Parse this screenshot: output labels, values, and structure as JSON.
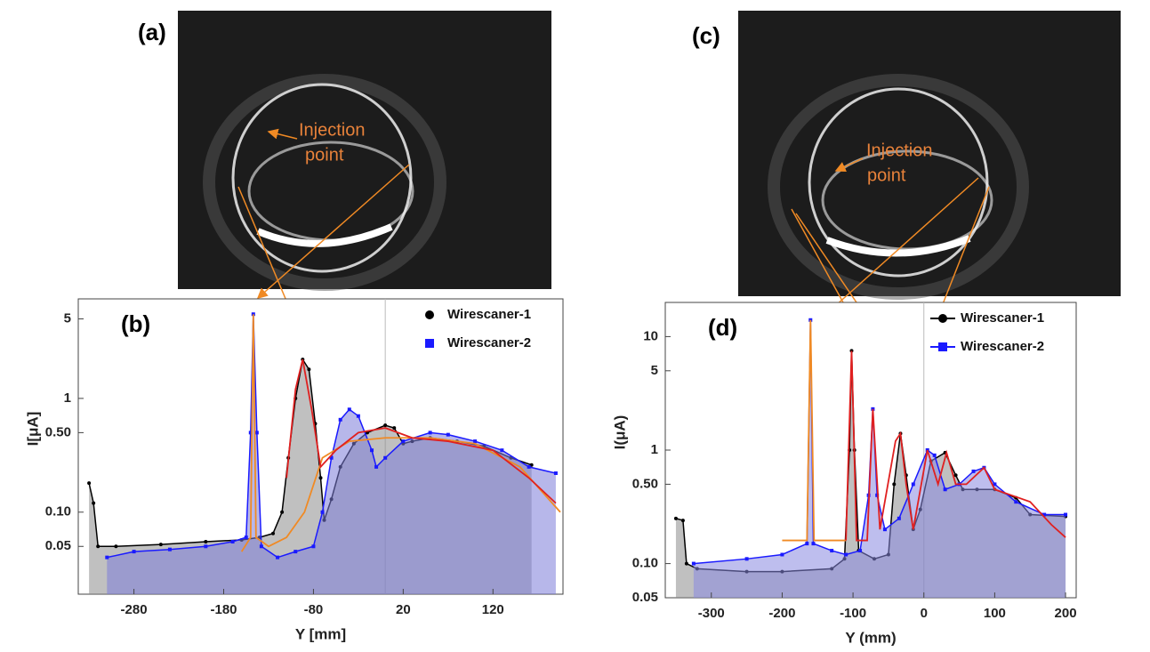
{
  "panels": [
    {
      "label": "(a)",
      "annotation": [
        "Injection",
        "point"
      ]
    },
    {
      "label": "(c)",
      "annotation": [
        "Injection",
        "point"
      ]
    }
  ],
  "chart_data": [
    {
      "type": "line",
      "label": "(b)",
      "x_label": "Y [mm]",
      "y_label": "I[μA]",
      "log_y": true,
      "legend": "upper right",
      "xlim": [
        -342,
        198
      ],
      "xticks": [
        -280,
        -180,
        -80,
        20,
        120
      ],
      "ylim": [
        0.019,
        7.5
      ],
      "yticks": [
        0.05,
        {
          "value": 0.1,
          "label": "0.10"
        },
        {
          "value": 0.5,
          "label": "0.50"
        },
        1,
        5
      ],
      "series": [
        {
          "name": "Wirescaner-1",
          "color": "#000000",
          "fill": "#8c8c8c",
          "marker": "circle",
          "x": [
            -330,
            -325,
            -320,
            -300,
            -250,
            -200,
            -160,
            -140,
            -125,
            -115,
            -108,
            -100,
            -92,
            -85,
            -78,
            -72,
            -68,
            -60,
            -50,
            -35,
            -20,
            0,
            10,
            20,
            30,
            50,
            80,
            110,
            140,
            163
          ],
          "values": [
            0.18,
            0.12,
            0.05,
            0.05,
            0.052,
            0.055,
            0.057,
            0.06,
            0.065,
            0.1,
            0.3,
            1.0,
            2.2,
            1.8,
            0.6,
            0.2,
            0.085,
            0.13,
            0.25,
            0.4,
            0.5,
            0.58,
            0.55,
            0.4,
            0.42,
            0.45,
            0.42,
            0.38,
            0.3,
            0.26
          ]
        },
        {
          "name": "Wirescaner-2",
          "color": "#1a1aff",
          "fill": "#7c7cd8",
          "marker": "square",
          "x": [
            -310,
            -280,
            -240,
            -200,
            -170,
            -155,
            -150,
            -147,
            -143,
            -138,
            -120,
            -100,
            -80,
            -70,
            -60,
            -50,
            -40,
            -30,
            -15,
            -10,
            0,
            20,
            50,
            70,
            100,
            130,
            160,
            190
          ],
          "values": [
            0.04,
            0.045,
            0.047,
            0.05,
            0.055,
            0.06,
            0.5,
            5.5,
            0.5,
            0.05,
            0.04,
            0.045,
            0.05,
            0.1,
            0.3,
            0.65,
            0.8,
            0.7,
            0.35,
            0.25,
            0.3,
            0.42,
            0.5,
            0.48,
            0.42,
            0.35,
            0.25,
            0.22
          ]
        },
        {
          "color": "#f08a24",
          "x": [
            -160,
            -150,
            -147,
            -144,
            -130,
            -110,
            -90,
            -70,
            -40,
            0,
            50,
            100,
            150,
            195
          ],
          "values": [
            0.045,
            0.06,
            5.5,
            0.06,
            0.05,
            0.06,
            0.1,
            0.3,
            0.42,
            0.45,
            0.45,
            0.4,
            0.25,
            0.1
          ]
        },
        {
          "color": "#e02020",
          "x": [
            -110,
            -100,
            -92,
            -82,
            -72,
            -55,
            -30,
            0,
            30,
            70,
            120,
            160,
            190
          ],
          "values": [
            0.2,
            1.2,
            2.2,
            0.8,
            0.25,
            0.35,
            0.5,
            0.55,
            0.45,
            0.42,
            0.35,
            0.2,
            0.12
          ]
        }
      ]
    },
    {
      "type": "line",
      "label": "(d)",
      "x_label": "Y (mm)",
      "y_label": "I(μA)",
      "log_y": true,
      "legend": "upper right",
      "xlim": [
        -365,
        215
      ],
      "xticks": [
        -300,
        -200,
        -100,
        0,
        100,
        200
      ],
      "ylim": [
        0.05,
        20
      ],
      "yticks": [
        0.05,
        {
          "value": 0.1,
          "label": "0.10"
        },
        {
          "value": 0.5,
          "label": "0.50"
        },
        1,
        5,
        10
      ],
      "series": [
        {
          "name": "Wirescaner-1",
          "color": "#000000",
          "fill": "#8c8c8c",
          "marker": "circle",
          "x": [
            -350,
            -340,
            -335,
            -320,
            -250,
            -200,
            -130,
            -112,
            -105,
            -102,
            -98,
            -92,
            -70,
            -50,
            -42,
            -33,
            -25,
            -15,
            -5,
            10,
            30,
            45,
            55,
            75,
            100,
            130,
            150,
            200
          ],
          "values": [
            0.25,
            0.24,
            0.1,
            0.09,
            0.085,
            0.085,
            0.09,
            0.11,
            1,
            7.5,
            1,
            0.13,
            0.11,
            0.12,
            0.5,
            1.4,
            0.6,
            0.2,
            0.3,
            0.8,
            0.95,
            0.6,
            0.45,
            0.45,
            0.45,
            0.38,
            0.27,
            0.26
          ]
        },
        {
          "name": "Wirescaner-2",
          "color": "#1a1aff",
          "fill": "#8888e0",
          "marker": "square",
          "x": [
            -325,
            -250,
            -200,
            -165,
            -160,
            -156,
            -130,
            -110,
            -90,
            -78,
            -72,
            -66,
            -55,
            -35,
            -15,
            5,
            15,
            30,
            50,
            70,
            85,
            100,
            130,
            170,
            200
          ],
          "values": [
            0.1,
            0.11,
            0.12,
            0.15,
            14,
            0.15,
            0.13,
            0.12,
            0.13,
            0.4,
            2.3,
            0.4,
            0.2,
            0.25,
            0.5,
            1,
            0.9,
            0.45,
            0.5,
            0.65,
            0.7,
            0.5,
            0.35,
            0.27,
            0.27
          ]
        },
        {
          "color": "#f08a24",
          "x": [
            -200,
            -165,
            -160,
            -155,
            -110
          ],
          "values": [
            0.16,
            0.16,
            14,
            0.16,
            0.16
          ]
        },
        {
          "color": "#e02020",
          "x": [
            -110,
            -102,
            -95,
            -80,
            -72,
            -62,
            -40,
            -33,
            -25,
            -15,
            5,
            20,
            32,
            45,
            60,
            85,
            100,
            150,
            180,
            200
          ],
          "values": [
            0.16,
            7.5,
            0.16,
            0.16,
            2.3,
            0.2,
            1.2,
            1.4,
            0.5,
            0.2,
            1,
            0.5,
            0.95,
            0.5,
            0.5,
            0.7,
            0.45,
            0.35,
            0.22,
            0.17
          ]
        }
      ]
    }
  ]
}
